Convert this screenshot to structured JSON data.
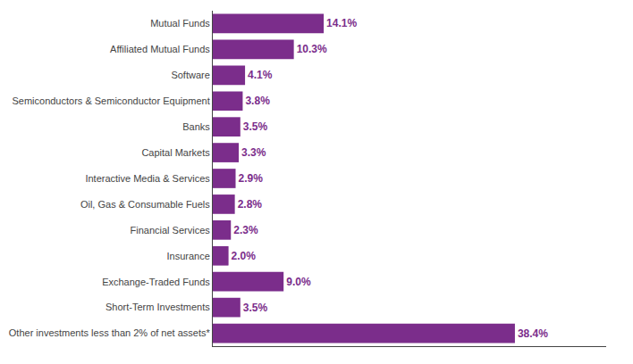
{
  "chart_data": {
    "type": "bar",
    "orientation": "horizontal",
    "categories": [
      "Mutual Funds",
      "Affiliated Mutual Funds",
      "Software",
      "Semiconductors & Semiconductor Equipment",
      "Banks",
      "Capital Markets",
      "Interactive Media & Services",
      "Oil, Gas & Consumable Fuels",
      "Financial Services",
      "Insurance",
      "Exchange-Traded Funds",
      "Short-Term Investments",
      "Other investments less than 2% of net assets*"
    ],
    "values": [
      14.1,
      10.3,
      4.1,
      3.8,
      3.5,
      3.3,
      2.9,
      2.8,
      2.3,
      2.0,
      9.0,
      3.5,
      38.4
    ],
    "value_labels": [
      "14.1%",
      "10.3%",
      "4.1%",
      "3.8%",
      "3.5%",
      "3.3%",
      "2.9%",
      "2.8%",
      "2.3%",
      "2.0%",
      "9.0%",
      "3.5%",
      "38.4%"
    ],
    "color": "#7B2D8B",
    "xlim": [
      0,
      50
    ],
    "data_labels": true,
    "tick_labels": "y",
    "grid": false
  }
}
